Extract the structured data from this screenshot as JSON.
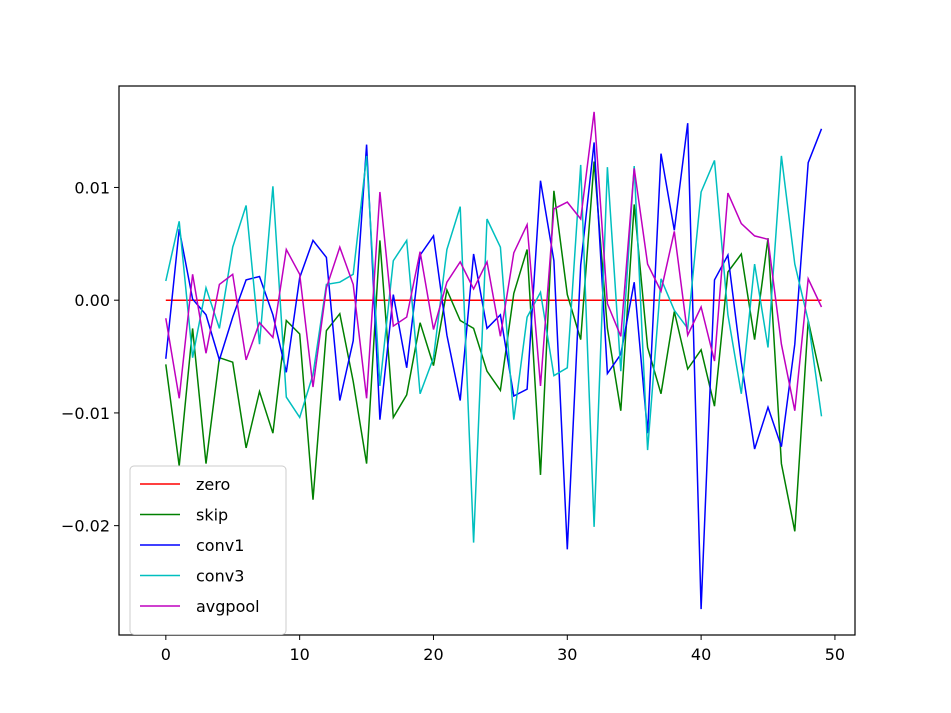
{
  "chart_data": {
    "type": "line",
    "title": "",
    "xlabel": "",
    "ylabel": "",
    "xlim": [
      -3.5,
      51.5
    ],
    "ylim": [
      -0.0297,
      0.019
    ],
    "xticks": [
      0,
      10,
      20,
      30,
      40,
      50
    ],
    "xtick_labels": [
      "0",
      "10",
      "20",
      "30",
      "40",
      "50"
    ],
    "yticks": [
      0.01,
      0.0,
      -0.01,
      -0.02
    ],
    "ytick_labels": [
      "0.01",
      "0.00",
      "−0.01",
      "−0.02"
    ],
    "grid": false,
    "legend_position": "lower-left",
    "series": [
      {
        "name": "zero",
        "color": "#ff0000",
        "values": [
          0,
          0,
          0,
          0,
          0,
          0,
          0,
          0,
          0,
          0,
          0,
          0,
          0,
          0,
          0,
          0,
          0,
          0,
          0,
          0,
          0,
          0,
          0,
          0,
          0,
          0,
          0,
          0,
          0,
          0,
          0,
          0,
          0,
          0,
          0,
          0,
          0,
          0,
          0,
          0,
          0,
          0,
          0,
          0,
          0,
          0,
          0,
          0,
          0,
          0
        ]
      },
      {
        "name": "skip",
        "color": "#008000",
        "values": [
          -0.0057,
          -0.0147,
          -0.0025,
          -0.0145,
          -0.0051,
          -0.0055,
          -0.0131,
          -0.0081,
          -0.0118,
          -0.0018,
          -0.003,
          -0.0177,
          -0.0027,
          -0.0012,
          -0.0072,
          -0.0145,
          0.0053,
          -0.0104,
          -0.0084,
          -0.002,
          -0.0058,
          0.0009,
          -0.0018,
          -0.0025,
          -0.0063,
          -0.008,
          0.0006,
          0.0045,
          -0.0155,
          0.0097,
          0.0005,
          -0.0035,
          0.0123,
          -0.0025,
          -0.0098,
          0.0085,
          -0.0042,
          -0.0083,
          -0.001,
          -0.0061,
          -0.0044,
          -0.0094,
          0.0025,
          0.0041,
          -0.0035,
          0.0055,
          -0.0145,
          -0.0205,
          -0.0018,
          -0.0072
        ]
      },
      {
        "name": "conv1",
        "color": "#0000ff",
        "values": [
          -0.0052,
          0.0063,
          0.0001,
          -0.0013,
          -0.0053,
          -0.0015,
          0.0018,
          0.0021,
          -0.0013,
          -0.0064,
          0.002,
          0.0053,
          0.0038,
          -0.0089,
          -0.0036,
          0.0138,
          -0.0106,
          0.0005,
          -0.006,
          0.004,
          0.0057,
          -0.0031,
          -0.0089,
          0.0041,
          -0.0025,
          -0.0013,
          -0.0085,
          -0.0079,
          0.0106,
          0.0035,
          -0.0221,
          0.0031,
          0.014,
          -0.0065,
          -0.0048,
          0.0016,
          -0.0118,
          0.013,
          0.0062,
          0.0157,
          -0.0274,
          0.0018,
          0.004,
          -0.0055,
          -0.0132,
          -0.0095,
          -0.013,
          -0.0039,
          0.0122,
          0.0152
        ]
      },
      {
        "name": "conv3",
        "color": "#00bfbf",
        "values": [
          0.0017,
          0.007,
          -0.0051,
          0.0011,
          -0.0025,
          0.0047,
          0.0084,
          -0.0039,
          0.0101,
          -0.0086,
          -0.0104,
          -0.0066,
          0.0014,
          0.0016,
          0.0023,
          0.0128,
          -0.0076,
          0.0035,
          0.0053,
          -0.0083,
          -0.0051,
          0.0045,
          0.0083,
          -0.0215,
          0.0072,
          0.0047,
          -0.0106,
          -0.0015,
          0.0007,
          -0.0067,
          -0.006,
          0.012,
          -0.0201,
          0.0118,
          -0.0063,
          0.0119,
          -0.0133,
          0.0019,
          -0.0009,
          -0.0025,
          0.0096,
          0.0124,
          -0.0013,
          -0.0083,
          0.0032,
          -0.0042,
          0.0128,
          0.0032,
          -0.0018,
          -0.0103
        ]
      },
      {
        "name": "avgpool",
        "color": "#bf00bf",
        "values": [
          -0.0016,
          -0.0087,
          0.0023,
          -0.0047,
          0.0014,
          0.0023,
          -0.0053,
          -0.002,
          -0.0033,
          0.0045,
          0.0023,
          -0.0077,
          0.0011,
          0.0047,
          0.0014,
          -0.0087,
          0.0096,
          -0.0023,
          -0.0015,
          0.0043,
          -0.0026,
          0.0016,
          0.0034,
          0.001,
          0.0034,
          -0.0032,
          0.0042,
          0.0067,
          -0.0076,
          0.0081,
          0.0087,
          0.0072,
          0.0167,
          -0.0003,
          -0.0032,
          0.0117,
          0.0032,
          0.0008,
          0.0061,
          -0.0031,
          -0.0006,
          -0.0054,
          0.0095,
          0.0068,
          0.0057,
          0.0054,
          -0.0039,
          -0.0098,
          0.0019,
          -0.0006
        ]
      }
    ]
  }
}
